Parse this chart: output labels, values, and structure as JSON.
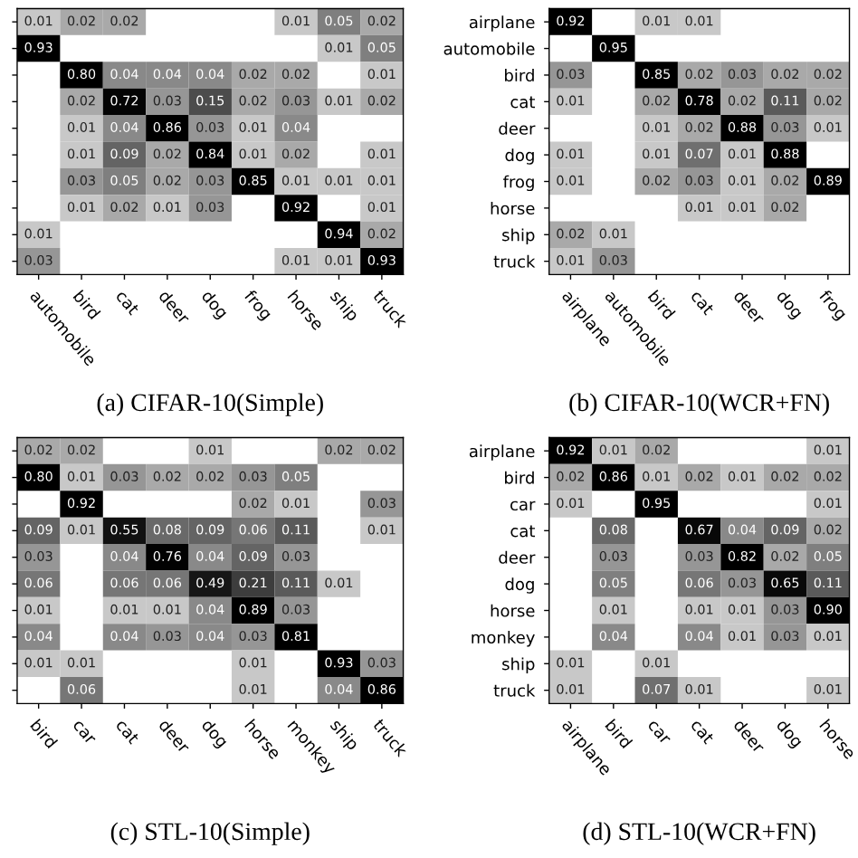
{
  "chart_data": [
    {
      "type": "heatmap",
      "title": "(a) CIFAR-10(Simple)",
      "tick_labels": "x",
      "data_labels": true,
      "cell_labels": [
        [
          "0.01",
          "0.02",
          "0.02",
          null,
          null,
          null,
          "0.01",
          "0.05",
          "0.02"
        ],
        [
          "0.93",
          null,
          null,
          null,
          null,
          null,
          null,
          "0.01",
          "0.05"
        ],
        [
          null,
          "0.80",
          "0.04",
          "0.04",
          "0.04",
          "0.02",
          "0.02",
          null,
          "0.01"
        ],
        [
          null,
          "0.02",
          "0.72",
          "0.03",
          "0.15",
          "0.02",
          "0.03",
          "0.01",
          "0.02"
        ],
        [
          null,
          "0.01",
          "0.04",
          "0.86",
          "0.03",
          "0.01",
          "0.04",
          null,
          null
        ],
        [
          null,
          "0.01",
          "0.09",
          "0.02",
          "0.84",
          "0.01",
          "0.02",
          null,
          "0.01"
        ],
        [
          null,
          "0.03",
          "0.05",
          "0.02",
          "0.03",
          "0.85",
          "0.01",
          "0.01",
          "0.01"
        ],
        [
          null,
          "0.01",
          "0.02",
          "0.01",
          "0.03",
          null,
          "0.92",
          null,
          "0.01"
        ],
        [
          "0.01",
          null,
          null,
          null,
          null,
          null,
          null,
          "0.94",
          "0.02"
        ],
        [
          "0.03",
          null,
          null,
          null,
          null,
          null,
          "0.01",
          "0.01",
          "0.93"
        ]
      ],
      "categories": [
        "automobile",
        "bird",
        "cat",
        "deer",
        "dog",
        "frog",
        "horse",
        "ship",
        "truck"
      ],
      "y_categories": [
        null,
        null,
        null,
        null,
        null,
        null,
        null,
        null,
        null,
        null
      ],
      "cells": [
        [
          0.01,
          0.02,
          0.02,
          null,
          null,
          null,
          0.01,
          0.05,
          0.02
        ],
        [
          0.93,
          null,
          null,
          null,
          null,
          null,
          null,
          0.01,
          0.05
        ],
        [
          null,
          0.8,
          0.04,
          0.04,
          0.04,
          0.02,
          0.02,
          null,
          0.01
        ],
        [
          null,
          0.02,
          0.72,
          0.03,
          0.15,
          0.02,
          0.03,
          0.01,
          0.02
        ],
        [
          null,
          0.01,
          0.04,
          0.86,
          0.03,
          0.01,
          0.04,
          null,
          null
        ],
        [
          null,
          0.01,
          0.09,
          0.02,
          0.84,
          0.01,
          0.02,
          null,
          0.01
        ],
        [
          null,
          0.03,
          0.05,
          0.02,
          0.03,
          0.85,
          0.01,
          0.01,
          0.01
        ],
        [
          null,
          0.01,
          0.02,
          0.01,
          0.03,
          null,
          0.92,
          null,
          0.01
        ],
        [
          0.01,
          null,
          null,
          null,
          null,
          null,
          null,
          0.94,
          0.02
        ],
        [
          0.03,
          null,
          null,
          null,
          null,
          null,
          0.01,
          0.01,
          0.93
        ]
      ]
    },
    {
      "type": "heatmap",
      "title": "(b) CIFAR-10(WCR+FN)",
      "data_labels": true,
      "categories": [
        "airplane",
        "automobile",
        "bird",
        "cat",
        "deer",
        "dog",
        "frog"
      ],
      "y_categories": [
        "airplane",
        "automobile",
        "bird",
        "cat",
        "deer",
        "dog",
        "frog",
        "horse",
        "ship",
        "truck"
      ],
      "cells": [
        [
          0.92,
          null,
          0.01,
          0.01,
          null,
          null,
          null
        ],
        [
          null,
          0.95,
          null,
          null,
          null,
          null,
          null
        ],
        [
          0.03,
          null,
          0.85,
          0.02,
          0.03,
          0.02,
          0.02
        ],
        [
          0.01,
          null,
          0.02,
          0.78,
          0.02,
          0.11,
          0.02
        ],
        [
          null,
          null,
          0.01,
          0.02,
          0.88,
          0.03,
          0.01
        ],
        [
          0.01,
          null,
          0.01,
          0.07,
          0.01,
          0.88,
          null
        ],
        [
          0.01,
          null,
          0.02,
          0.03,
          0.01,
          0.02,
          0.89
        ],
        [
          null,
          null,
          null,
          0.01,
          0.01,
          0.02,
          null
        ],
        [
          0.02,
          0.01,
          null,
          null,
          null,
          null,
          null
        ],
        [
          0.01,
          0.03,
          null,
          null,
          null,
          null,
          null
        ]
      ]
    },
    {
      "type": "heatmap",
      "title": "(c) STL-10(Simple)",
      "tick_labels": "x",
      "data_labels": true,
      "cell_labels": [
        [
          "0.02",
          "0.02",
          null,
          null,
          "0.01",
          null,
          null,
          "0.02",
          "0.02"
        ],
        [
          "0.80",
          "0.01",
          "0.03",
          "0.02",
          "0.02",
          "0.03",
          "0.05",
          null,
          null
        ],
        [
          null,
          "0.92",
          null,
          null,
          null,
          "0.02",
          "0.01",
          null,
          "0.03"
        ],
        [
          "0.09",
          "0.01",
          "0.55",
          "0.08",
          "0.09",
          "0.06",
          "0.11",
          null,
          "0.01"
        ],
        [
          "0.03",
          null,
          "0.04",
          "0.76",
          "0.04",
          "0.09",
          "0.03",
          null,
          null
        ],
        [
          "0.06",
          null,
          "0.06",
          "0.06",
          "0.49",
          "0.21",
          "0.11",
          "0.01",
          null
        ],
        [
          "0.01",
          null,
          "0.01",
          "0.01",
          "0.04",
          "0.89",
          "0.03",
          null,
          null
        ],
        [
          "0.04",
          null,
          "0.04",
          "0.03",
          "0.04",
          "0.03",
          "0.81",
          null,
          null
        ],
        [
          "0.01",
          "0.01",
          null,
          null,
          null,
          "0.01",
          null,
          "0.93",
          "0.03"
        ],
        [
          null,
          "0.06",
          null,
          null,
          null,
          "0.01",
          null,
          "0.04",
          "0.86"
        ]
      ],
      "categories": [
        "bird",
        "car",
        "cat",
        "deer",
        "dog",
        "horse",
        "monkey",
        "ship",
        "truck"
      ],
      "y_categories": [
        null,
        null,
        null,
        null,
        null,
        null,
        null,
        null,
        null,
        null
      ],
      "cells": [
        [
          0.02,
          0.02,
          null,
          null,
          0.01,
          null,
          null,
          0.02,
          0.02
        ],
        [
          0.8,
          0.01,
          0.03,
          0.02,
          0.02,
          0.03,
          0.05,
          null,
          null
        ],
        [
          null,
          0.92,
          null,
          null,
          null,
          0.02,
          0.01,
          null,
          0.03
        ],
        [
          0.09,
          0.01,
          0.55,
          0.08,
          0.09,
          0.06,
          0.11,
          null,
          0.01
        ],
        [
          0.03,
          null,
          0.04,
          0.76,
          0.04,
          0.09,
          0.03,
          null,
          null
        ],
        [
          0.06,
          null,
          0.06,
          0.06,
          0.49,
          0.21,
          0.11,
          0.01,
          null
        ],
        [
          0.01,
          null,
          0.01,
          0.01,
          0.04,
          0.89,
          0.03,
          null,
          null
        ],
        [
          0.04,
          null,
          0.04,
          0.03,
          0.04,
          0.03,
          0.81,
          null,
          null
        ],
        [
          0.01,
          0.01,
          null,
          null,
          null,
          0.01,
          null,
          0.93,
          0.03
        ],
        [
          null,
          0.06,
          null,
          null,
          null,
          0.01,
          null,
          0.04,
          0.86
        ]
      ]
    },
    {
      "type": "heatmap",
      "title": "(d) STL-10(WCR+FN)",
      "data_labels": true,
      "cell_labels": [
        [
          "0.92",
          "0.01",
          "0.02",
          null,
          null,
          null,
          "0.01"
        ],
        [
          "0.02",
          "0.86",
          "0.01",
          "0.02",
          "0.01",
          "0.02",
          "0.02"
        ],
        [
          "0.01",
          null,
          "0.95",
          null,
          null,
          null,
          "0.01"
        ],
        [
          null,
          "0.08",
          null,
          "0.67",
          "0.04",
          "0.09",
          "0.02"
        ],
        [
          null,
          "0.03",
          null,
          "0.03",
          "0.82",
          "0.02",
          "0.05"
        ],
        [
          null,
          "0.05",
          null,
          "0.06",
          "0.03",
          "0.65",
          "0.11"
        ],
        [
          null,
          "0.01",
          null,
          "0.01",
          "0.01",
          "0.03",
          "0.90"
        ],
        [
          null,
          "0.04",
          null,
          "0.04",
          "0.01",
          "0.03",
          "0.01"
        ],
        [
          "0.01",
          null,
          "0.01",
          null,
          null,
          null,
          null
        ],
        [
          "0.01",
          null,
          "0.07",
          "0.01",
          null,
          null,
          "0.01"
        ]
      ],
      "categories": [
        "airplane",
        "bird",
        "car",
        "cat",
        "deer",
        "dog",
        "horse"
      ],
      "y_categories": [
        "airplane",
        "bird",
        "car",
        "cat",
        "deer",
        "dog",
        "horse",
        "monkey",
        "ship",
        "truck"
      ],
      "cells": [
        [
          0.92,
          0.01,
          0.02,
          null,
          null,
          null,
          0.01
        ],
        [
          0.02,
          0.86,
          0.01,
          0.02,
          0.01,
          0.02,
          0.02
        ],
        [
          0.01,
          null,
          0.95,
          null,
          null,
          null,
          0.01
        ],
        [
          null,
          0.08,
          null,
          0.67,
          0.04,
          0.09,
          0.02
        ],
        [
          null,
          0.03,
          null,
          0.03,
          0.82,
          0.02,
          0.05
        ],
        [
          null,
          0.05,
          null,
          0.06,
          0.03,
          0.65,
          0.11
        ],
        [
          null,
          0.01,
          null,
          0.01,
          0.01,
          0.03,
          0.9
        ],
        [
          null,
          0.04,
          null,
          0.04,
          0.01,
          0.03,
          0.01
        ],
        [
          0.01,
          null,
          0.01,
          null,
          null,
          null,
          null
        ],
        [
          0.01,
          null,
          0.07,
          0.01,
          null,
          null,
          0.01
        ]
      ]
    }
  ]
}
